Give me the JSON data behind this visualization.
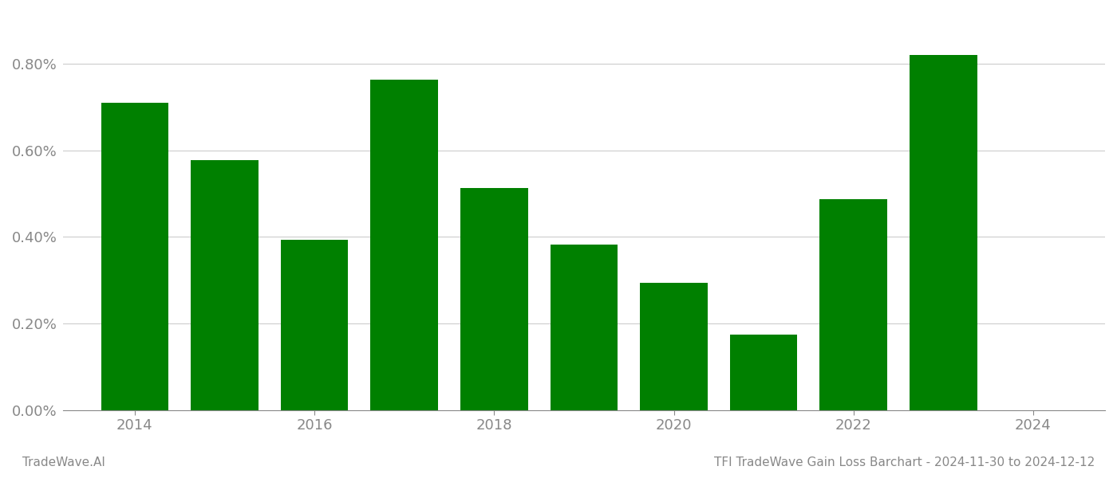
{
  "years": [
    2014,
    2015,
    2016,
    2017,
    2018,
    2019,
    2020,
    2021,
    2022,
    2023
  ],
  "values": [
    0.0071,
    0.00577,
    0.00393,
    0.00763,
    0.00513,
    0.00383,
    0.00293,
    0.00175,
    0.00488,
    0.0082
  ],
  "bar_color": "#008000",
  "background_color": "#ffffff",
  "ylim_min": 0.0,
  "ylim_max": 0.0092,
  "ytick_values": [
    0.0,
    0.002,
    0.004,
    0.006,
    0.008
  ],
  "ytick_labels": [
    "0.00%",
    "0.20%",
    "0.40%",
    "0.60%",
    "0.80%"
  ],
  "xtick_positions": [
    2014,
    2016,
    2018,
    2020,
    2022,
    2024
  ],
  "xtick_labels": [
    "2014",
    "2016",
    "2018",
    "2020",
    "2022",
    "2024"
  ],
  "footer_left": "TradeWave.AI",
  "footer_right": "TFI TradeWave Gain Loss Barchart - 2024-11-30 to 2024-12-12",
  "grid_color": "#cccccc",
  "tick_color": "#888888",
  "footer_color": "#888888",
  "bar_width": 0.75,
  "xlim_min": 2013.2,
  "xlim_max": 2024.8
}
